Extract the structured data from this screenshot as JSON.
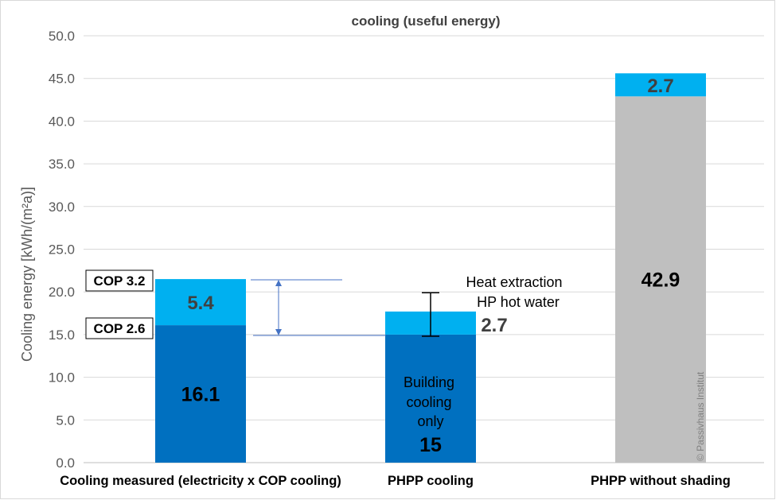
{
  "chart_data": {
    "type": "bar",
    "stacked": true,
    "title": "cooling (useful energy)",
    "ylabel": "Cooling energy  [kWh/(m²a)]",
    "xlabel": "",
    "ylim": [
      0,
      50
    ],
    "yticks": [
      "0.0",
      "5.0",
      "10.0",
      "15.0",
      "20.0",
      "25.0",
      "30.0",
      "35.0",
      "40.0",
      "45.0",
      "50.0"
    ],
    "grid": true,
    "categories": [
      "Cooling measured (electricity x COP cooling)",
      "PHPP cooling",
      "PHPP without shading"
    ],
    "series": [
      {
        "values": [
          16.1,
          15,
          42.9
        ],
        "colors": [
          "#0070c0",
          "#0070c0",
          "#bfbfbf"
        ],
        "labels": [
          "16.1",
          "15",
          "42.9"
        ]
      },
      {
        "values": [
          5.4,
          2.7,
          2.7
        ],
        "colors": [
          "#00b0f0",
          "#00b0f0",
          "#00b0f0"
        ],
        "labels": [
          "5.4",
          "2.7",
          "2.7"
        ]
      }
    ],
    "error_bar": {
      "category": "PHPP cooling",
      "low": 14.8,
      "high": 19.9
    },
    "annotations": {
      "cop_high": "COP 3.2",
      "cop_low": "COP 2.6",
      "heat_extraction_line1": "Heat extraction",
      "heat_extraction_line2": "HP  hot water",
      "building_line1": "Building",
      "building_line2": "cooling",
      "building_line3": "only"
    },
    "watermark": "© Passivhaus Institut"
  }
}
